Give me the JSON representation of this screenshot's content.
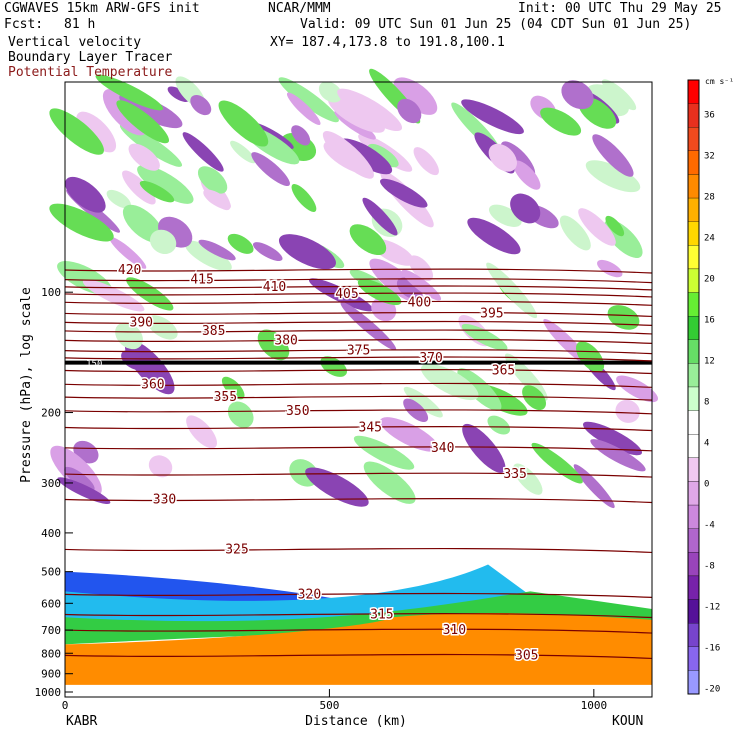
{
  "header": {
    "model": "CGWAVES 15km ARW-GFS init",
    "fcst_label": "Fcst:",
    "fcst_value": "81 h",
    "org": "NCAR/MMM",
    "init": "Init: 00 UTC Thu 29 May 25",
    "valid": "Valid: 09 UTC Sun 01 Jun 25 (04 CDT Sun 01 Jun 25)",
    "xy": "XY= 187.4,173.8 to 191.8,100.1",
    "field1": "Vertical velocity",
    "field2": "Boundary Layer Tracer",
    "field3": "Potential Temperature",
    "field3_color": "#8b1a1a"
  },
  "chart_data": {
    "type": "heatmap",
    "title": "",
    "xlabel": "Distance (km)",
    "ylabel": "Pressure (hPa), log scale",
    "xlim": [
      0,
      1110
    ],
    "ylim": [
      1000,
      30
    ],
    "y_scale": "log",
    "x_ticks": [
      {
        "value": 0,
        "label": "0"
      },
      {
        "value": 500,
        "label": "500"
      },
      {
        "value": 1000,
        "label": "1000"
      }
    ],
    "y_ticks": [
      {
        "value": 100,
        "label": "100"
      },
      {
        "value": 200,
        "label": "200"
      },
      {
        "value": 300,
        "label": "300"
      },
      {
        "value": 400,
        "label": "400"
      },
      {
        "value": 500,
        "label": "500"
      },
      {
        "value": 600,
        "label": "600"
      },
      {
        "value": 700,
        "label": "700"
      },
      {
        "value": 800,
        "label": "800"
      },
      {
        "value": 900,
        "label": "900"
      },
      {
        "value": 1000,
        "label": "1000"
      }
    ],
    "endpoints": {
      "left": "KABR",
      "right": "KOUN"
    },
    "colorbar": {
      "unit": "cm s⁻¹",
      "labels": [
        "36",
        "32",
        "28",
        "24",
        "20",
        "16",
        "12",
        "8",
        "4",
        "0",
        "-4",
        "-8",
        "-12",
        "-16",
        "-20"
      ],
      "colors": [
        "#ff0000",
        "#e8301e",
        "#f04a1e",
        "#ff6a00",
        "#ff8a00",
        "#ffb000",
        "#ffd700",
        "#ffff33",
        "#ccff33",
        "#66ee33",
        "#33cc33",
        "#66dd66",
        "#99ee99",
        "#ccffcc",
        "#ffffff",
        "#ffffff",
        "#f0c8f0",
        "#e0a8e8",
        "#cc88dd",
        "#b066cc",
        "#9944bb",
        "#7722aa",
        "#551199",
        "#7744cc",
        "#8866ee",
        "#9999ff"
      ]
    },
    "theta_contours": [
      {
        "value": 420,
        "p": 88
      },
      {
        "value": 415,
        "p": 93
      },
      {
        "value": 410,
        "p": 97
      },
      {
        "value": 405,
        "p": 101
      },
      {
        "value": 400,
        "p": 106
      },
      {
        "value": 395,
        "p": 113
      },
      {
        "value": 390,
        "p": 119
      },
      {
        "value": 385,
        "p": 125
      },
      {
        "value": 380,
        "p": 132
      },
      {
        "value": 375,
        "p": 140
      },
      {
        "value": 370,
        "p": 146
      },
      {
        "value": 365,
        "p": 157
      },
      {
        "value": 360,
        "p": 170
      },
      {
        "value": 355,
        "p": 183
      },
      {
        "value": 350,
        "p": 198
      },
      {
        "value": 345,
        "p": 218
      },
      {
        "value": 340,
        "p": 245
      },
      {
        "value": 335,
        "p": 285
      },
      {
        "value": 330,
        "p": 330
      },
      {
        "value": 325,
        "p": 440
      },
      {
        "value": 320,
        "p": 570
      },
      {
        "value": 315,
        "p": 640
      },
      {
        "value": 310,
        "p": 700
      },
      {
        "value": 305,
        "p": 810
      }
    ],
    "tracer_label": "150",
    "tracer_line_p": 150,
    "surface_p": 960
  }
}
